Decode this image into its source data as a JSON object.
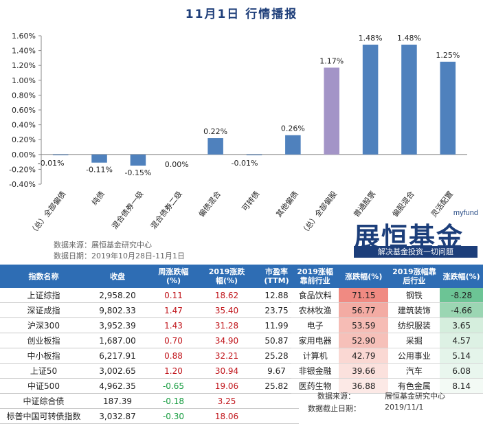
{
  "title": "11月1日  行情播报",
  "chart_data": {
    "type": "bar",
    "categories": [
      "（总）全部偏债",
      "纯债",
      "混合债券一级",
      "混合债券二级",
      "偏债混合",
      "可转债",
      "其他偏债",
      "（总）全部偏股",
      "普通股票",
      "偏股混合",
      "灵活配置"
    ],
    "values": [
      -0.01,
      -0.11,
      -0.15,
      0.0,
      0.22,
      -0.01,
      0.26,
      1.17,
      1.48,
      1.48,
      1.25
    ],
    "value_labels": [
      "-0.01%",
      "-0.11%",
      "-0.15%",
      "0.00%",
      "0.22%",
      "-0.01%",
      "0.26%",
      "1.17%",
      "1.48%",
      "1.48%",
      "1.25%"
    ],
    "ylim": [
      -0.4,
      1.6
    ],
    "yticks": [
      "-0.40%",
      "-0.20%",
      "0.00%",
      "0.20%",
      "0.40%",
      "0.60%",
      "0.80%",
      "1.00%",
      "1.20%",
      "1.40%",
      "1.60%"
    ],
    "bar_color": "#4f81bd",
    "highlight_color": "#a394c7",
    "highlight_index": 7,
    "grid": false
  },
  "source_label": "数据来源：展恒基金研究中心",
  "date_label": "数据日期：2019年10月28日-11月1日",
  "logo": {
    "small": "myfund",
    "big": "展恒基金",
    "slogan": "解决基金投资一切问题"
  },
  "index_table": {
    "headers": [
      "指数名称",
      "收盘",
      "周涨跌幅\n(%)",
      "2019涨跌\n幅(%)",
      "市盈率\n(TTM)"
    ],
    "rows": [
      {
        "name": "上证综指",
        "close": "2,958.20",
        "week": "0.11",
        "year": "18.62",
        "pe": "12.88"
      },
      {
        "name": "深证成指",
        "close": "9,802.33",
        "week": "1.47",
        "year": "35.40",
        "pe": "23.75"
      },
      {
        "name": "沪深300",
        "close": "3,952.39",
        "week": "1.43",
        "year": "31.28",
        "pe": "11.99"
      },
      {
        "name": "创业板指",
        "close": "1,687.00",
        "week": "0.70",
        "year": "34.90",
        "pe": "50.87"
      },
      {
        "name": "中小板指",
        "close": "6,217.91",
        "week": "0.88",
        "year": "32.21",
        "pe": "25.28"
      },
      {
        "name": "上证50",
        "close": "3,002.65",
        "week": "1.20",
        "year": "30.94",
        "pe": "9.67"
      },
      {
        "name": "中证500",
        "close": "4,962.35",
        "week": "-0.65",
        "year": "19.06",
        "pe": "25.82"
      },
      {
        "name": "中证综合债",
        "close": "187.39",
        "week": "-0.18",
        "year": "3.25",
        "pe": ""
      },
      {
        "name": "标普中国可转债指数",
        "close": "3,032.87",
        "week": "-0.30",
        "year": "18.06",
        "pe": ""
      }
    ]
  },
  "industry_table": {
    "headers": [
      "2019涨幅\n靠前行业",
      "涨跌幅(%)",
      "2019涨幅靠\n后行业",
      "涨跌幅(%)"
    ],
    "rows": [
      {
        "top": "食品饮料",
        "top_val": "71.15",
        "top_color": "#f08a82",
        "bot": "钢铁",
        "bot_val": "-8.28",
        "bot_color": "#6cc495"
      },
      {
        "top": "农林牧渔",
        "top_val": "56.77",
        "top_color": "#f3aba3",
        "bot": "建筑装饰",
        "bot_val": "-4.66",
        "bot_color": "#9bd6b3"
      },
      {
        "top": "电子",
        "top_val": "53.59",
        "top_color": "#f6bcb5",
        "bot": "纺织服装",
        "bot_val": "3.65",
        "bot_color": "#d5eedd"
      },
      {
        "top": "家用电器",
        "top_val": "52.90",
        "top_color": "#f6c0b9",
        "bot": "采掘",
        "bot_val": "4.57",
        "bot_color": "#ddf1e4"
      },
      {
        "top": "计算机",
        "top_val": "42.79",
        "top_color": "#fad8d3",
        "bot": "公用事业",
        "bot_val": "5.14",
        "bot_color": "#e4f4ea"
      },
      {
        "top": "非银金融",
        "top_val": "39.66",
        "top_color": "#fbe1dd",
        "bot": "汽车",
        "bot_val": "6.08",
        "bot_color": "#e9f6ee"
      },
      {
        "top": "医药生物",
        "top_val": "36.88",
        "top_color": "#fce9e6",
        "bot": "有色金属",
        "bot_val": "8.14",
        "bot_color": "#f3faf5"
      }
    ]
  },
  "footer": {
    "source_key": "数据来源：",
    "source_val": "展恒基金研究中心",
    "date_key": "数据截止日期：",
    "date_val": "2019/11/1"
  }
}
